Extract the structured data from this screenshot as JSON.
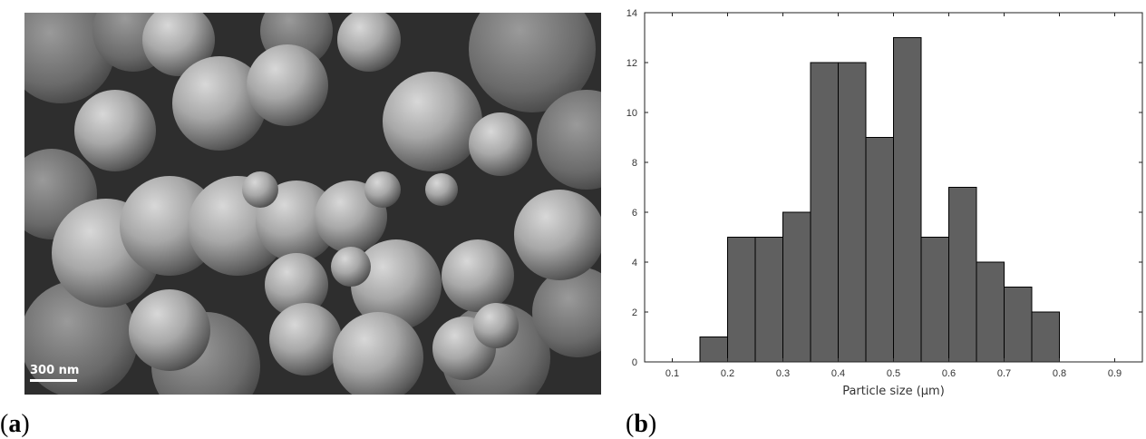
{
  "panels": {
    "a": {
      "label_open": "(",
      "label_letter": "a",
      "label_close": ")"
    },
    "b": {
      "label_open": "(",
      "label_letter": "b",
      "label_close": ")"
    }
  },
  "sem_image": {
    "scale_bar_text": "300 nm"
  },
  "chart_data": {
    "type": "bar",
    "subtype": "histogram",
    "xlabel": "Particle size (μm)",
    "ylabel": "",
    "title": "",
    "bins": [
      {
        "from": 0.15,
        "to": 0.2,
        "count": 1
      },
      {
        "from": 0.2,
        "to": 0.25,
        "count": 5
      },
      {
        "from": 0.25,
        "to": 0.3,
        "count": 5
      },
      {
        "from": 0.3,
        "to": 0.35,
        "count": 6
      },
      {
        "from": 0.35,
        "to": 0.4,
        "count": 12
      },
      {
        "from": 0.4,
        "to": 0.45,
        "count": 12
      },
      {
        "from": 0.45,
        "to": 0.5,
        "count": 9
      },
      {
        "from": 0.5,
        "to": 0.55,
        "count": 13
      },
      {
        "from": 0.55,
        "to": 0.6,
        "count": 5
      },
      {
        "from": 0.6,
        "to": 0.65,
        "count": 7
      },
      {
        "from": 0.65,
        "to": 0.7,
        "count": 4
      },
      {
        "from": 0.7,
        "to": 0.75,
        "count": 3
      },
      {
        "from": 0.75,
        "to": 0.8,
        "count": 2
      }
    ],
    "xlim": [
      0.05,
      0.95
    ],
    "ylim": [
      0,
      14
    ],
    "xticks": [
      "0.1",
      "0.2",
      "0.3",
      "0.4",
      "0.5",
      "0.6",
      "0.7",
      "0.8",
      "0.9"
    ],
    "yticks": [
      "0",
      "2",
      "4",
      "6",
      "8",
      "10",
      "12",
      "14"
    ],
    "bar_color": "#606060",
    "edge_color": "#000000",
    "grid": false
  }
}
